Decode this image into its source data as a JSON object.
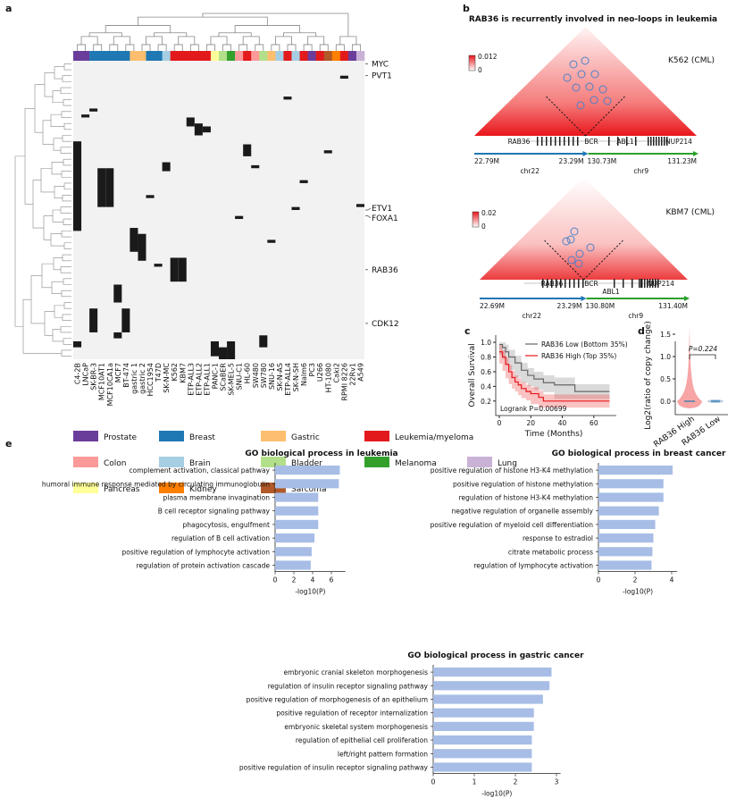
{
  "panels": {
    "a": "a",
    "b": "b",
    "c": "c",
    "d": "d",
    "e": "e"
  },
  "heatmap": {
    "samples": [
      "C4-2B",
      "LNCaP",
      "SK-BR-3",
      "MCF10AT1",
      "MCF10CA1a",
      "MCF7",
      "BT-474",
      "gastric 1",
      "gastric 2",
      "HCC1954",
      "T47D",
      "SK-N-MC",
      "K562",
      "KBM7",
      "ETP-ALL3",
      "ETP-ALL2",
      "ETP-ALL1",
      "PANC-1",
      "SCaBER",
      "SK-MEL-5",
      "SNU-C1",
      "HL-60",
      "SW480",
      "SW780",
      "SNU-16",
      "SK-N-AS",
      "ETP-ALL4",
      "SK-N-SH",
      "Nalm6",
      "PC3",
      "U266",
      "HT-1080",
      "Caki2",
      "RPMI 8226",
      "22Rv1",
      "A549"
    ],
    "sample_tissue": [
      "Prostate",
      "Prostate",
      "Breast",
      "Breast",
      "Breast",
      "Breast",
      "Breast",
      "Gastric",
      "Gastric",
      "Breast",
      "Breast",
      "Brain",
      "Leukemia/myeloma",
      "Leukemia/myeloma",
      "Leukemia/myeloma",
      "Leukemia/myeloma",
      "Leukemia/myeloma",
      "Pancreas",
      "Bladder",
      "Melanoma",
      "Colon",
      "Leukemia/myeloma",
      "Colon",
      "Bladder",
      "Gastric",
      "Brain",
      "Leukemia/myeloma",
      "Brain",
      "Leukemia/myeloma",
      "Prostate",
      "Leukemia/myeloma",
      "Sarcoma",
      "Kidney",
      "Leukemia/myeloma",
      "Prostate",
      "Lung"
    ],
    "row_count": 100,
    "gene_labels": [
      {
        "name": "MYC",
        "row": 1
      },
      {
        "name": "PVT1",
        "row": 5
      },
      {
        "name": "ETV1",
        "row": 50
      },
      {
        "name": "FOXA1",
        "row": 52
      },
      {
        "name": "RAB36",
        "row": 70
      },
      {
        "name": "CDK12",
        "row": 88
      }
    ],
    "blocks": [
      [
        0,
        27,
        57
      ],
      [
        0,
        94,
        96
      ],
      [
        2,
        83,
        91
      ],
      [
        2,
        16,
        17
      ],
      [
        3,
        36,
        49
      ],
      [
        4,
        36,
        49
      ],
      [
        5,
        75,
        81
      ],
      [
        5,
        91,
        93
      ],
      [
        6,
        83,
        91
      ],
      [
        7,
        56,
        64
      ],
      [
        8,
        58,
        67
      ],
      [
        11,
        34,
        37
      ],
      [
        12,
        66,
        74
      ],
      [
        13,
        66,
        74
      ],
      [
        14,
        19,
        22
      ],
      [
        15,
        21,
        25
      ],
      [
        16,
        22,
        24
      ],
      [
        17,
        94,
        99
      ],
      [
        18,
        96,
        100
      ],
      [
        19,
        94,
        100
      ],
      [
        21,
        28,
        32
      ],
      [
        23,
        92,
        96
      ],
      [
        22,
        35,
        36
      ],
      [
        26,
        12,
        13
      ],
      [
        27,
        49,
        50
      ],
      [
        31,
        30,
        31
      ],
      [
        33,
        5,
        6
      ],
      [
        35,
        48,
        49
      ],
      [
        20,
        52,
        53
      ],
      [
        9,
        45,
        46
      ],
      [
        10,
        68,
        69
      ],
      [
        1,
        18,
        19
      ],
      [
        24,
        60,
        61
      ],
      [
        28,
        40,
        41
      ]
    ]
  },
  "tissues": [
    {
      "name": "Prostate",
      "color": "#6a3d9a"
    },
    {
      "name": "Breast",
      "color": "#1f78b4"
    },
    {
      "name": "Gastric",
      "color": "#fdbf6f"
    },
    {
      "name": "Leukemia/myeloma",
      "color": "#e31a1c"
    },
    {
      "name": "Colon",
      "color": "#fb9a99"
    },
    {
      "name": "Brain",
      "color": "#a6cee3"
    },
    {
      "name": "Bladder",
      "color": "#b2df8a"
    },
    {
      "name": "Melanoma",
      "color": "#33a02c"
    },
    {
      "name": "Lung",
      "color": "#cab2d6"
    },
    {
      "name": "Pancreas",
      "color": "#ffff99"
    },
    {
      "name": "Kidney",
      "color": "#ff7f00"
    },
    {
      "name": "Sarcoma",
      "color": "#b15928"
    }
  ],
  "hic": {
    "title": "RAB36 is recurrently involved in neo-loops in leukemia",
    "maps": [
      {
        "sample": "K562 (CML)",
        "scale_max": "0.012",
        "scale_min": "0",
        "genes": [
          "RAB36",
          "BCR",
          "ABL1",
          "NUP214"
        ],
        "left_start": "22.79M",
        "left_end": "23.29M",
        "left_chr": "chr22",
        "right_start": "130.73M",
        "right_end": "131.23M",
        "right_chr": "chr9"
      },
      {
        "sample": "KBM7 (CML)",
        "scale_max": "0.02",
        "scale_min": "0",
        "genes": [
          "RAB36",
          "BCR",
          "ABL1",
          "NUP214"
        ],
        "left_start": "22.69M",
        "left_end": "23.29M",
        "left_chr": "chr22",
        "right_start": "130.80M",
        "right_end": "131.40M",
        "right_chr": "chr9"
      }
    ]
  },
  "survival": {
    "ylabel": "Overall Survival",
    "xlabel": "Time (Months)",
    "legend_low": "RAB36 Low (Bottom 35%)",
    "legend_high": "RAB36 High (Top 35%)",
    "logrank": "Logrank P=0.00699",
    "yticks": [
      "0.2",
      "0.4",
      "0.6",
      "0.8",
      "1.0"
    ],
    "xticks": [
      "0",
      "20",
      "40",
      "60"
    ],
    "low": [
      [
        0,
        0.97
      ],
      [
        2,
        0.93
      ],
      [
        4,
        0.87
      ],
      [
        6,
        0.8
      ],
      [
        10,
        0.72
      ],
      [
        14,
        0.62
      ],
      [
        18,
        0.55
      ],
      [
        22,
        0.5
      ],
      [
        28,
        0.45
      ],
      [
        35,
        0.42
      ],
      [
        48,
        0.33
      ],
      [
        70,
        0.33
      ]
    ],
    "high": [
      [
        0,
        0.87
      ],
      [
        2,
        0.8
      ],
      [
        4,
        0.7
      ],
      [
        6,
        0.6
      ],
      [
        8,
        0.52
      ],
      [
        10,
        0.46
      ],
      [
        12,
        0.42
      ],
      [
        14,
        0.37
      ],
      [
        17,
        0.33
      ],
      [
        20,
        0.3
      ],
      [
        25,
        0.25
      ],
      [
        28,
        0.2
      ],
      [
        70,
        0.2
      ]
    ]
  },
  "violin": {
    "ylabel": "Log2(ratio of copy change)",
    "pvalue": "P=0.224",
    "yticks": [
      "0.0",
      "0.5",
      "1.0",
      "1.5"
    ],
    "groups": [
      "RAB36 High",
      "RAB36 Low"
    ]
  },
  "chart_data": [
    {
      "type": "bar",
      "title": "GO biological process in leukemia",
      "xlabel": "-log10(P)",
      "xticks": [
        "0",
        "2",
        "4",
        "6"
      ],
      "xlim": [
        0,
        7.5
      ],
      "categories": [
        "complement activation, classical pathway",
        "humoral immune response mediated by circulating immunoglobulin",
        "plasma membrane invagination",
        "B cell receptor signaling pathway",
        "phagocytosis, engulfment",
        "regulation of B cell activation",
        "positive regulation of lymphocyte activation",
        "regulation of protein activation cascade"
      ],
      "values": [
        6.9,
        6.8,
        4.6,
        4.6,
        4.6,
        4.2,
        3.9,
        3.8
      ]
    },
    {
      "type": "bar",
      "title": "GO biological process in breast cancer",
      "xlabel": "-log10(P)",
      "xticks": [
        "0",
        "2",
        "4"
      ],
      "xlim": [
        0,
        4.3
      ],
      "categories": [
        "positive regulation of histone H3-K4 methylation",
        "positive regulation of histone methylation",
        "regulation of histone H3-K4 methylation",
        "negative regulation of organelle assembly",
        "positive regulation of myeloid cell differentiation",
        "response to estradiol",
        "citrate metabolic process",
        "regulation of lymphocyte activation"
      ],
      "values": [
        4.05,
        3.55,
        3.55,
        3.3,
        3.1,
        3.0,
        2.95,
        2.9
      ]
    },
    {
      "type": "bar",
      "title": "GO biological process in gastric cancer",
      "xlabel": "-log10(P)",
      "xticks": [
        "0",
        "1",
        "2",
        "3"
      ],
      "xlim": [
        0,
        3.1
      ],
      "categories": [
        "embryonic cranial skeleton morphogenesis",
        "regulation of insulin receptor signaling pathway",
        "positive regulation of morphogenesis of an epithelium",
        "positive regulation of receptor internalization",
        "embryonic skeletal system morphogenesis",
        "regulation of epithelial cell proliferation",
        "left/right pattern formation",
        "positive regulation of insulin receptor signaling pathway"
      ],
      "values": [
        2.88,
        2.83,
        2.67,
        2.45,
        2.45,
        2.4,
        2.4,
        2.4
      ]
    }
  ],
  "colors": {
    "bar": "#a7bde6",
    "red": "#e8161b",
    "blue": "#1f77b4",
    "green": "#2ca02c",
    "gray": "#666666"
  }
}
